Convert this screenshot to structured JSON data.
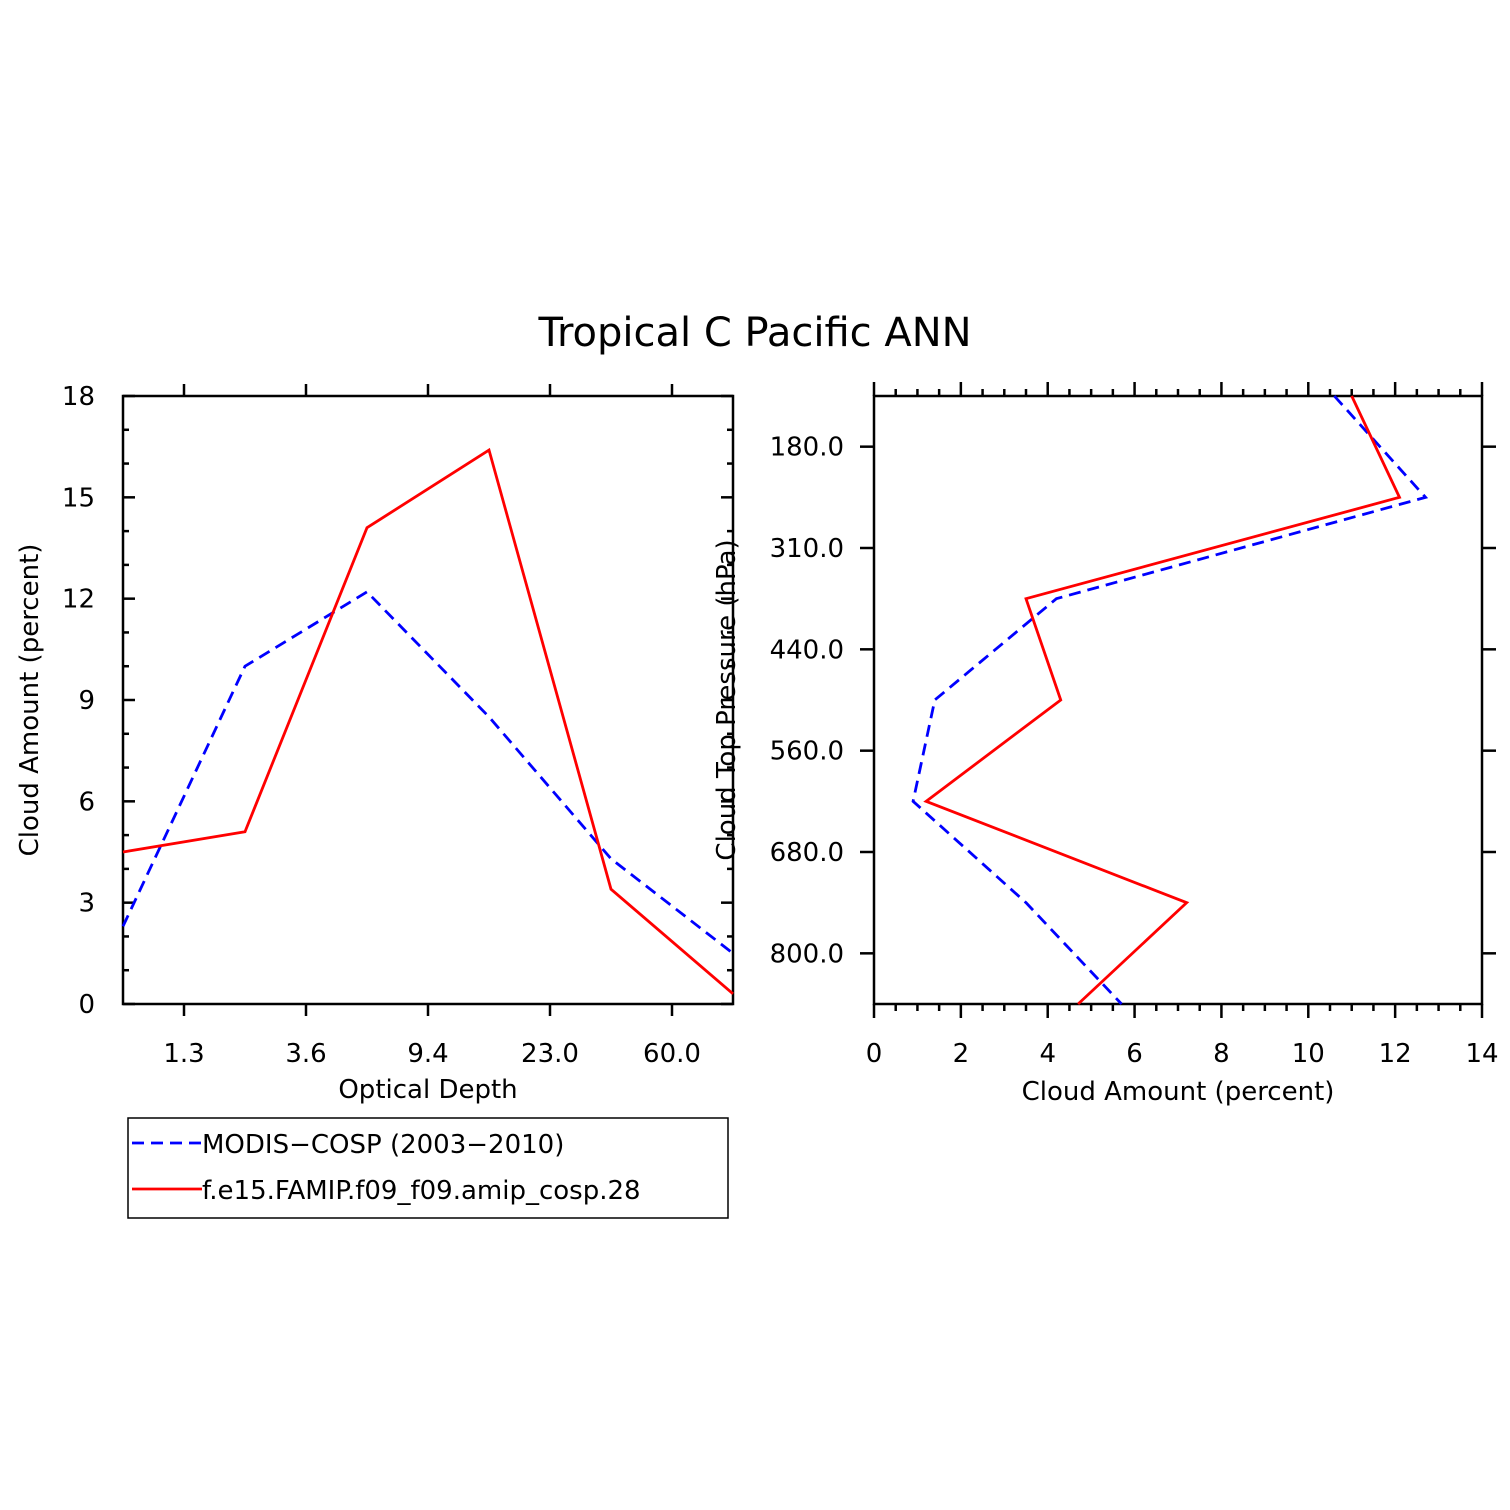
{
  "title": "Tropical C Pacific ANN",
  "colors": {
    "obs": "#0000ff",
    "model": "#ff0000"
  },
  "legend": {
    "entries": [
      {
        "label": "MODIS−COSP (2003−2010)",
        "style": "dashed",
        "color": "#0000ff"
      },
      {
        "label": "f.e15.FAMIP.f09_f09.amip_cosp.28",
        "style": "solid",
        "color": "#ff0000"
      }
    ]
  },
  "chart_data": [
    {
      "type": "line",
      "xlabel": "Optical Depth",
      "ylabel": "Cloud Amount (percent)",
      "x_bins": 6,
      "x_tick_labels": [
        "1.3",
        "3.6",
        "9.4",
        "23.0",
        "60.0"
      ],
      "x_tick_positions": [
        0.5,
        1.5,
        2.5,
        3.5,
        4.5
      ],
      "ylim": [
        0,
        18
      ],
      "y_ticks": [
        0,
        3,
        6,
        9,
        12,
        15,
        18
      ],
      "y_tick_labels": [
        "0",
        "3",
        "6",
        "9",
        "12",
        "15",
        "18"
      ],
      "series": [
        {
          "name": "MODIS−COSP (2003−2010)",
          "x": [
            0,
            1,
            2,
            3,
            4,
            5
          ],
          "values": [
            2.3,
            10.0,
            12.2,
            8.5,
            4.3,
            1.5
          ]
        },
        {
          "name": "f.e15.FAMIP.f09_f09.amip_cosp.28",
          "x": [
            0,
            1,
            2,
            3,
            4,
            5
          ],
          "values": [
            4.5,
            5.1,
            14.1,
            16.4,
            3.4,
            0.3
          ]
        }
      ]
    },
    {
      "type": "line",
      "orientation": "horizontal-profile",
      "xlabel": "Cloud Amount (percent)",
      "ylabel": "Cloud Top Pressure (hPa)",
      "xlim": [
        0,
        14
      ],
      "x_ticks": [
        0,
        2,
        4,
        6,
        8,
        10,
        12,
        14
      ],
      "x_tick_labels": [
        "0",
        "2",
        "4",
        "6",
        "8",
        "10",
        "12",
        "14"
      ],
      "y_bins": 6,
      "y_tick_labels": [
        "180.0",
        "310.0",
        "440.0",
        "560.0",
        "680.0",
        "800.0"
      ],
      "y_tick_positions": [
        0.5,
        1.5,
        2.5,
        3.5,
        4.5,
        5.5
      ],
      "series": [
        {
          "name": "MODIS−COSP (2003−2010)",
          "y": [
            0,
            1,
            2,
            3,
            4,
            5,
            6
          ],
          "values": [
            10.6,
            12.7,
            4.2,
            1.4,
            0.9,
            3.5,
            5.7
          ]
        },
        {
          "name": "f.e15.FAMIP.f09_f09.amip_cosp.28",
          "y": [
            0,
            1,
            2,
            3,
            4,
            5,
            6
          ],
          "values": [
            11.0,
            12.1,
            3.5,
            4.3,
            1.2,
            7.2,
            4.7
          ]
        }
      ]
    }
  ]
}
